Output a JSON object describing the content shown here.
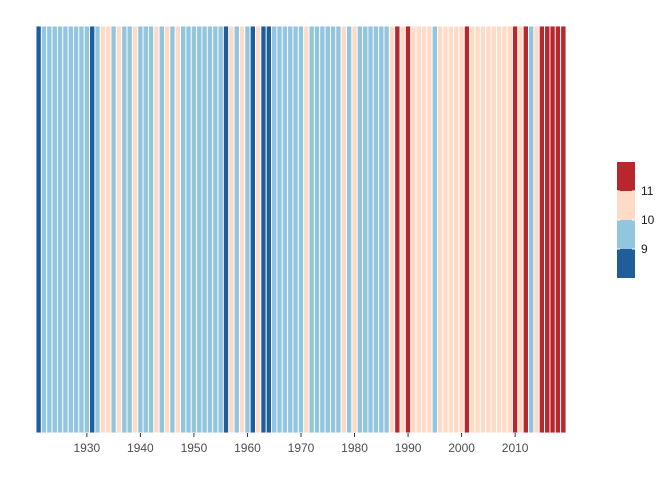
{
  "chart_data": {
    "type": "heatmap",
    "title": "",
    "xlabel": "",
    "ylabel": "",
    "x_start": 1921,
    "x_end": 2019,
    "x_ticks": [
      1930,
      1940,
      1950,
      1960,
      1970,
      1980,
      1990,
      2000,
      2010
    ],
    "x_tick_labels": [
      "1930",
      "1940",
      "1950",
      "1960",
      "1970",
      "1980",
      "1990",
      "2000",
      "2010"
    ],
    "color_classes": [
      {
        "range": "< 9.5",
        "color": "#1F5E9B"
      },
      {
        "range": "9.5 – 10.5",
        "color": "#92C5DE"
      },
      {
        "range": "10.5 – 11.5",
        "color": "#FDDBC7"
      },
      {
        "range": "> 11.5",
        "color": "#B8262E"
      }
    ],
    "grid": false,
    "legend": {
      "placement": "right",
      "labels": [
        "9",
        "10",
        "11"
      ],
      "colors_bottom_to_top": [
        "#1F5E9B",
        "#92C5DE",
        "#FDDBC7",
        "#B8262E"
      ]
    },
    "series": [
      {
        "values": [
          9.2,
          9.9,
          10.0,
          9.8,
          10.1,
          9.9,
          10.0,
          9.9,
          10.1,
          9.9,
          9.2,
          10.0,
          10.7,
          10.6,
          9.9,
          10.8,
          9.9,
          10.0,
          10.8,
          9.9,
          10.0,
          9.9,
          10.7,
          9.8,
          10.8,
          9.9,
          10.6,
          9.9,
          10.0,
          9.9,
          10.0,
          10.0,
          10.1,
          10.0,
          10.0,
          9.3,
          10.7,
          9.9,
          10.6,
          10.0,
          9.2,
          10.7,
          9.3,
          9.4,
          10.0,
          9.9,
          9.8,
          10.0,
          10.0,
          9.9,
          10.7,
          9.9,
          10.0,
          10.0,
          9.9,
          10.0,
          9.9,
          10.6,
          9.9,
          10.6,
          9.9,
          10.1,
          10.0,
          9.9,
          10.0,
          10.0,
          10.7,
          11.8,
          10.7,
          11.9,
          10.6,
          10.8,
          10.7,
          10.6,
          10.0,
          10.7,
          10.8,
          10.6,
          10.7,
          10.8,
          11.9,
          10.6,
          10.7,
          10.8,
          10.7,
          10.6,
          10.7,
          10.6,
          10.7,
          11.9,
          10.8,
          11.8,
          9.9,
          10.6,
          11.8,
          11.9,
          11.7,
          11.9,
          11.8
        ]
      }
    ]
  }
}
